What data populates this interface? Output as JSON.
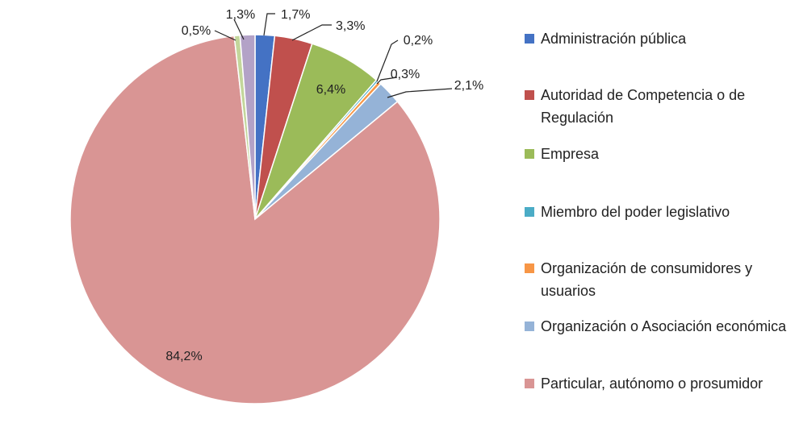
{
  "chart_data": {
    "type": "pie",
    "title": "",
    "slices": [
      {
        "label": "Administración pública",
        "value": 1.7,
        "value_label": "1,7%",
        "color": "#4472C4"
      },
      {
        "label": "Autoridad de Competencia o de Regulación",
        "value": 3.3,
        "value_label": "3,3%",
        "color": "#C0504D"
      },
      {
        "label": "Empresa",
        "value": 6.4,
        "value_label": "6,4%",
        "color": "#9BBB59"
      },
      {
        "label": "Miembro del poder legislativo",
        "value": 0.2,
        "value_label": "0,2%",
        "color": "#4BACC6"
      },
      {
        "label": "Organización de consumidores y usuarios",
        "value": 0.3,
        "value_label": "0,3%",
        "color": "#F79646"
      },
      {
        "label": "Organización o Asociación económica",
        "value": 2.1,
        "value_label": "2,1%",
        "color": "#95B3D7"
      },
      {
        "label": "Particular, autónomo o prosumidor",
        "value": 84.2,
        "value_label": "84,2%",
        "color": "#D99594"
      },
      {
        "label": "",
        "value": 0.5,
        "value_label": "0,5%",
        "color": "#C3D69B"
      },
      {
        "label": "",
        "value": 1.3,
        "value_label": "1,3%",
        "color": "#B3A2C7"
      }
    ],
    "legend_position": "right"
  }
}
